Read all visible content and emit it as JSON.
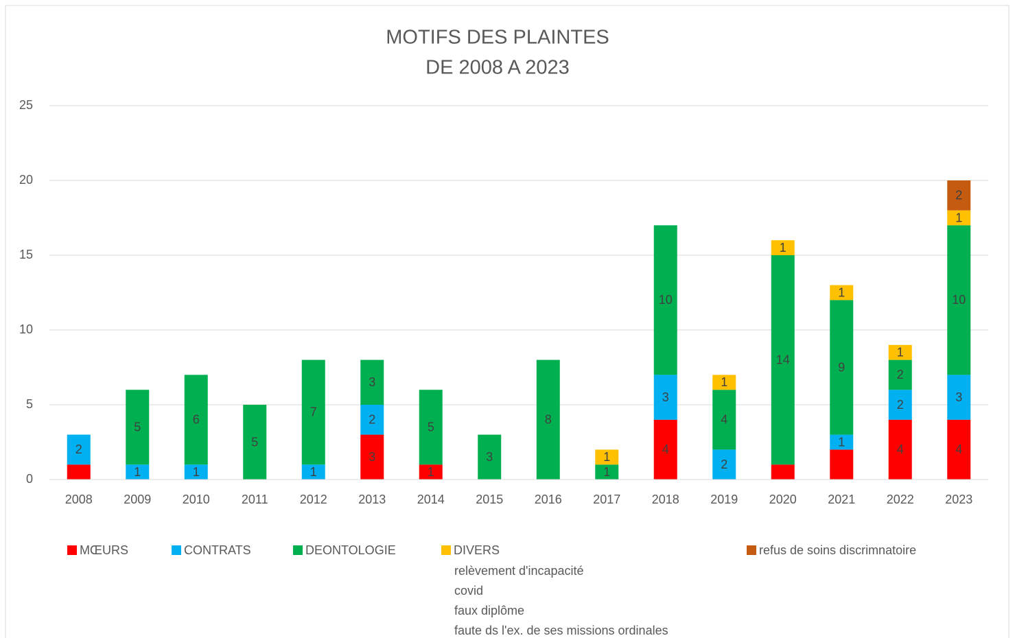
{
  "chart_data": {
    "type": "stacked_bar",
    "title": [
      "MOTIFS DES PLAINTES",
      "DE 2008 A 2023"
    ],
    "categories": [
      "2008",
      "2009",
      "2010",
      "2011",
      "2012",
      "2013",
      "2014",
      "2015",
      "2016",
      "2017",
      "2018",
      "2019",
      "2020",
      "2021",
      "2022",
      "2023"
    ],
    "series": [
      {
        "name": "MŒURS",
        "color": "#ff0000",
        "values": [
          1,
          0,
          0,
          0,
          0,
          3,
          1,
          0,
          0,
          0,
          4,
          0,
          1,
          2,
          4,
          4
        ],
        "value_labels": [
          null,
          null,
          null,
          null,
          null,
          "3",
          "1",
          null,
          null,
          null,
          "4",
          null,
          null,
          null,
          "4",
          "4"
        ]
      },
      {
        "name": "CONTRATS",
        "color": "#00b0f0",
        "values": [
          2,
          1,
          1,
          0,
          1,
          2,
          0,
          0,
          0,
          0,
          3,
          2,
          0,
          1,
          2,
          3
        ],
        "value_labels": [
          "2",
          "1",
          "1",
          null,
          "1",
          "2",
          null,
          null,
          null,
          null,
          "3",
          "2",
          null,
          "1",
          "2",
          "3"
        ]
      },
      {
        "name": "DEONTOLOGIE",
        "color": "#00b050",
        "values": [
          0,
          5,
          6,
          5,
          7,
          3,
          5,
          3,
          8,
          1,
          10,
          4,
          14,
          9,
          2,
          10
        ],
        "value_labels": [
          null,
          "5",
          "6",
          "5",
          "7",
          "3",
          "5",
          "3",
          "8",
          "1",
          "10",
          "4",
          "14",
          "9",
          "2",
          "10"
        ]
      },
      {
        "name": "DIVERS",
        "color": "#ffc000",
        "values": [
          0,
          0,
          0,
          0,
          0,
          0,
          0,
          0,
          0,
          1,
          0,
          1,
          1,
          1,
          1,
          1
        ],
        "value_labels": [
          null,
          null,
          null,
          null,
          null,
          null,
          null,
          null,
          null,
          "1",
          null,
          "1",
          "1",
          "1",
          "1",
          "1"
        ]
      },
      {
        "name": "refus de soins discrimnatoire",
        "color": "#c55a11",
        "values": [
          0,
          0,
          0,
          0,
          0,
          0,
          0,
          0,
          0,
          0,
          0,
          0,
          0,
          0,
          0,
          2
        ],
        "value_labels": [
          null,
          null,
          null,
          null,
          null,
          null,
          null,
          null,
          null,
          null,
          null,
          null,
          null,
          null,
          null,
          "2"
        ]
      }
    ],
    "legend_notes": [
      "relèvement d'incapacité",
      "covid",
      "faux diplôme",
      "faute ds l'ex. de ses missions ordinales"
    ],
    "ylim": [
      0,
      25
    ],
    "yticks": [
      0,
      5,
      10,
      15,
      20,
      25
    ],
    "grid": true,
    "legend": "bottom"
  }
}
